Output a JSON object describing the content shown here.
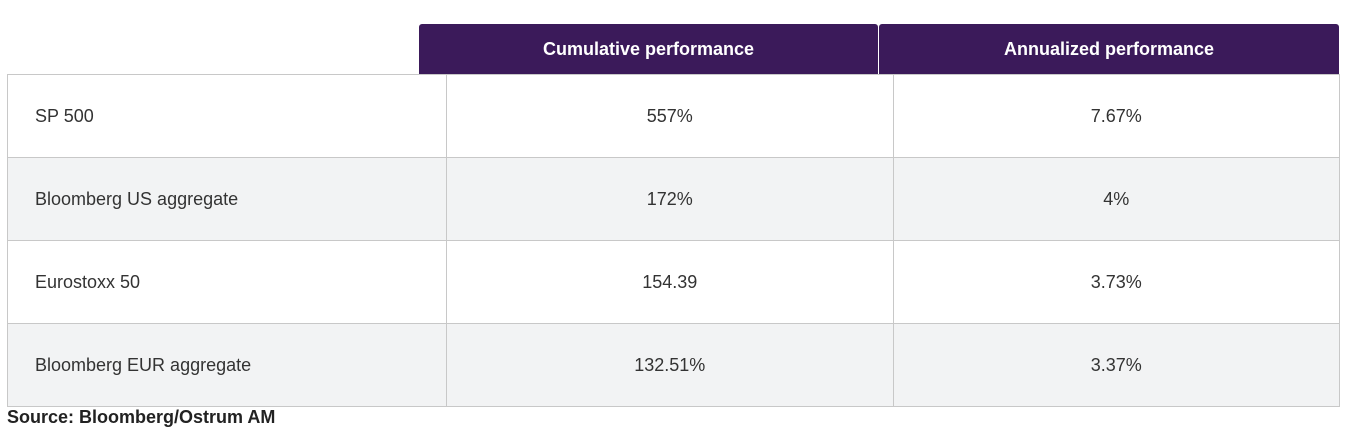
{
  "table": {
    "headers": {
      "cumulative": "Cumulative performance",
      "annualized": "Annualized performance"
    },
    "rows": [
      {
        "label": "SP 500",
        "cumulative": "557%",
        "annualized": "7.67%"
      },
      {
        "label": "Bloomberg US aggregate",
        "cumulative": "172%",
        "annualized": "4%"
      },
      {
        "label": "Eurostoxx 50",
        "cumulative": "154.39",
        "annualized": "3.73%"
      },
      {
        "label": "Bloomberg EUR aggregate",
        "cumulative": "132.51%",
        "annualized": "3.37%"
      }
    ]
  },
  "source": "Source: Bloomberg/Ostrum AM",
  "colors": {
    "header_bg": "#3b1a5a",
    "header_text": "#ffffff",
    "alt_row_bg": "#f2f3f4",
    "border": "#c8c8c8"
  }
}
